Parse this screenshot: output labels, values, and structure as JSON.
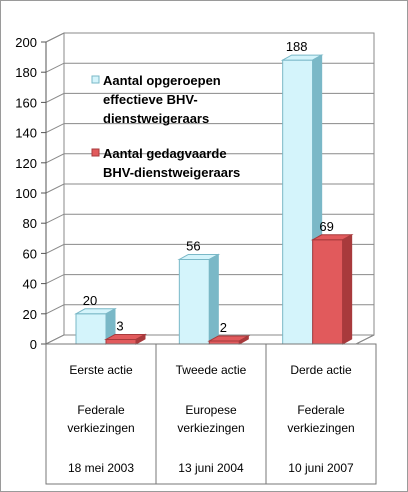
{
  "chart_data": {
    "type": "bar",
    "categories": [
      {
        "label": "Eerste actie",
        "election": [
          "Federale",
          "verkiezingen"
        ],
        "date": "18 mei 2003"
      },
      {
        "label": "Tweede actie",
        "election": [
          "Europese",
          "verkiezingen"
        ],
        "date": "13 juni 2004"
      },
      {
        "label": "Derde actie",
        "election": [
          "Federale",
          "verkiezingen"
        ],
        "date": "10 juni 2007"
      }
    ],
    "series": [
      {
        "name": [
          "Aantal opgeroepen",
          "effectieve BHV-",
          "dienstweigeraars"
        ],
        "values": [
          20,
          56,
          188
        ],
        "color": "#d4f4fb",
        "color_dark": "#7ab8c7"
      },
      {
        "name": [
          "Aantal gedagvaarde",
          "BHV-dienstweigeraars"
        ],
        "values": [
          3,
          2,
          69
        ],
        "color": "#e15a5c",
        "color_dark": "#a83a3c"
      }
    ],
    "yticks": [
      0,
      20,
      40,
      60,
      80,
      100,
      120,
      140,
      160,
      180,
      200
    ],
    "ylim": [
      0,
      200
    ],
    "grid": true,
    "legend_position": "top-left"
  }
}
